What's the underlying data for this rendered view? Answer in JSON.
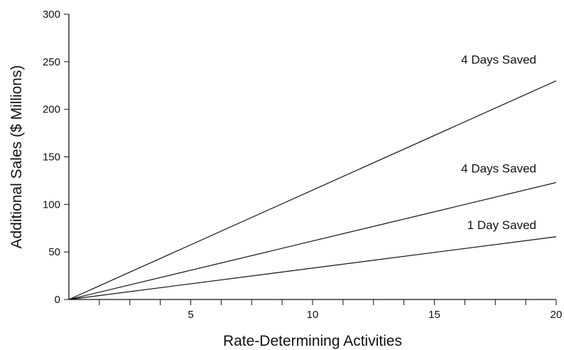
{
  "chart_data": {
    "type": "line",
    "title": "",
    "xlabel": "Rate-Determining Activities",
    "ylabel": "Additional Sales ($ Millions)",
    "xlim": [
      0,
      20
    ],
    "ylim": [
      0,
      300
    ],
    "x_major_ticks": [
      5,
      10,
      15,
      20
    ],
    "x_minor_step": 1.25,
    "y_ticks": [
      0,
      50,
      100,
      150,
      200,
      250,
      300
    ],
    "grid": false,
    "legend": "none",
    "series": [
      {
        "name": "4 Days Saved",
        "x": [
          0,
          20
        ],
        "y": [
          0,
          230
        ]
      },
      {
        "name": "4 Days Saved",
        "x": [
          0,
          20
        ],
        "y": [
          0,
          123
        ]
      },
      {
        "name": "1 Day Saved",
        "x": [
          0,
          20
        ],
        "y": [
          0,
          66
        ]
      }
    ]
  }
}
